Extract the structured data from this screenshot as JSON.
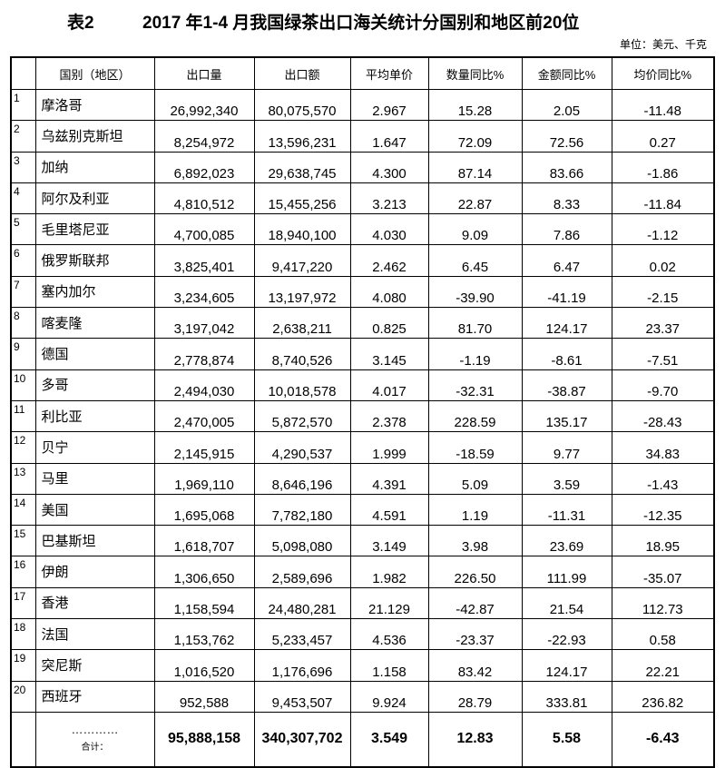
{
  "title": {
    "label": "表2",
    "text": "2017 年1-4 月我国绿茶出口海关统计分国别和地区前20位"
  },
  "unit": "单位：美元、千克",
  "headers": [
    "",
    "国别（地区）",
    "出口量",
    "出口额",
    "平均单价",
    "数量同比%",
    "金额同比%",
    "均价同比%"
  ],
  "rows": [
    [
      "1",
      "摩洛哥",
      "26,992,340",
      "80,075,570",
      "2.967",
      "15.28",
      "2.05",
      "-11.48"
    ],
    [
      "2",
      "乌兹别克斯坦",
      "8,254,972",
      "13,596,231",
      "1.647",
      "72.09",
      "72.56",
      "0.27"
    ],
    [
      "3",
      "加纳",
      "6,892,023",
      "29,638,745",
      "4.300",
      "87.14",
      "83.66",
      "-1.86"
    ],
    [
      "4",
      "阿尔及利亚",
      "4,810,512",
      "15,455,256",
      "3.213",
      "22.87",
      "8.33",
      "-11.84"
    ],
    [
      "5",
      "毛里塔尼亚",
      "4,700,085",
      "18,940,100",
      "4.030",
      "9.09",
      "7.86",
      "-1.12"
    ],
    [
      "6",
      "俄罗斯联邦",
      "3,825,401",
      "9,417,220",
      "2.462",
      "6.45",
      "6.47",
      "0.02"
    ],
    [
      "7",
      "塞内加尔",
      "3,234,605",
      "13,197,972",
      "4.080",
      "-39.90",
      "-41.19",
      "-2.15"
    ],
    [
      "8",
      "喀麦隆",
      "3,197,042",
      "2,638,211",
      "0.825",
      "81.70",
      "124.17",
      "23.37"
    ],
    [
      "9",
      "德国",
      "2,778,874",
      "8,740,526",
      "3.145",
      "-1.19",
      "-8.61",
      "-7.51"
    ],
    [
      "10",
      "多哥",
      "2,494,030",
      "10,018,578",
      "4.017",
      "-32.31",
      "-38.87",
      "-9.70"
    ],
    [
      "11",
      "利比亚",
      "2,470,005",
      "5,872,570",
      "2.378",
      "228.59",
      "135.17",
      "-28.43"
    ],
    [
      "12",
      "贝宁",
      "2,145,915",
      "4,290,537",
      "1.999",
      "-18.59",
      "9.77",
      "34.83"
    ],
    [
      "13",
      "马里",
      "1,969,110",
      "8,646,196",
      "4.391",
      "5.09",
      "3.59",
      "-1.43"
    ],
    [
      "14",
      "美国",
      "1,695,068",
      "7,782,180",
      "4.591",
      "1.19",
      "-11.31",
      "-12.35"
    ],
    [
      "15",
      "巴基斯坦",
      "1,618,707",
      "5,098,080",
      "3.149",
      "3.98",
      "23.69",
      "18.95"
    ],
    [
      "16",
      "伊朗",
      "1,306,650",
      "2,589,696",
      "1.982",
      "226.50",
      "111.99",
      "-35.07"
    ],
    [
      "17",
      "香港",
      "1,158,594",
      "24,480,281",
      "21.129",
      "-42.87",
      "21.54",
      "112.73"
    ],
    [
      "18",
      "法国",
      "1,153,762",
      "5,233,457",
      "4.536",
      "-23.37",
      "-22.93",
      "0.58"
    ],
    [
      "19",
      "突尼斯",
      "1,016,520",
      "1,176,696",
      "1.158",
      "83.42",
      "124.17",
      "22.21"
    ],
    [
      "20",
      "西班牙",
      "952,588",
      "9,453,507",
      "9.924",
      "28.79",
      "333.81",
      "236.82"
    ]
  ],
  "total": {
    "dots": "…………",
    "label": "合计：",
    "values": [
      "95,888,158",
      "340,307,702",
      "3.549",
      "12.83",
      "5.58",
      "-6.43"
    ]
  }
}
